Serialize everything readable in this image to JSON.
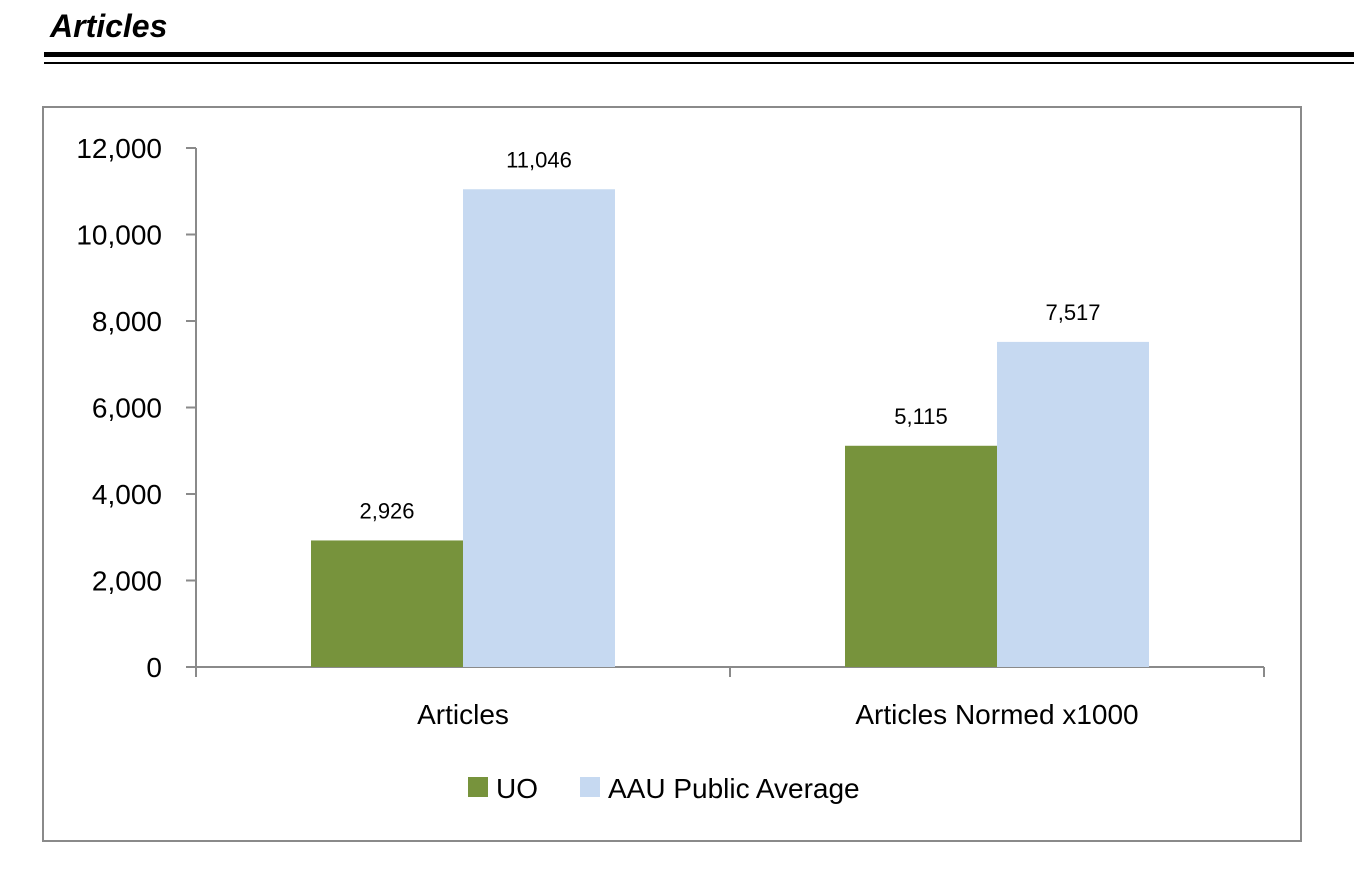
{
  "page": {
    "heading": "Articles"
  },
  "chart_data": {
    "type": "bar",
    "title": "",
    "xlabel": "",
    "ylabel": "",
    "categories": [
      "Articles",
      "Articles Normed x1000"
    ],
    "series": [
      {
        "name": "UO",
        "values": [
          2926,
          5115
        ],
        "labels": [
          "2,926",
          "5,115"
        ],
        "color": "#77933c"
      },
      {
        "name": "AAU Public Average",
        "values": [
          11046,
          7517
        ],
        "labels": [
          "11,046",
          "7,517"
        ],
        "color": "#c6d9f1"
      }
    ],
    "ylim": [
      0,
      12000
    ],
    "yticks": [
      0,
      2000,
      4000,
      6000,
      8000,
      10000,
      12000
    ],
    "ytick_labels": [
      "0",
      "2,000",
      "4,000",
      "6,000",
      "8,000",
      "10,000",
      "12,000"
    ],
    "grid": false,
    "legend": "bottom"
  }
}
